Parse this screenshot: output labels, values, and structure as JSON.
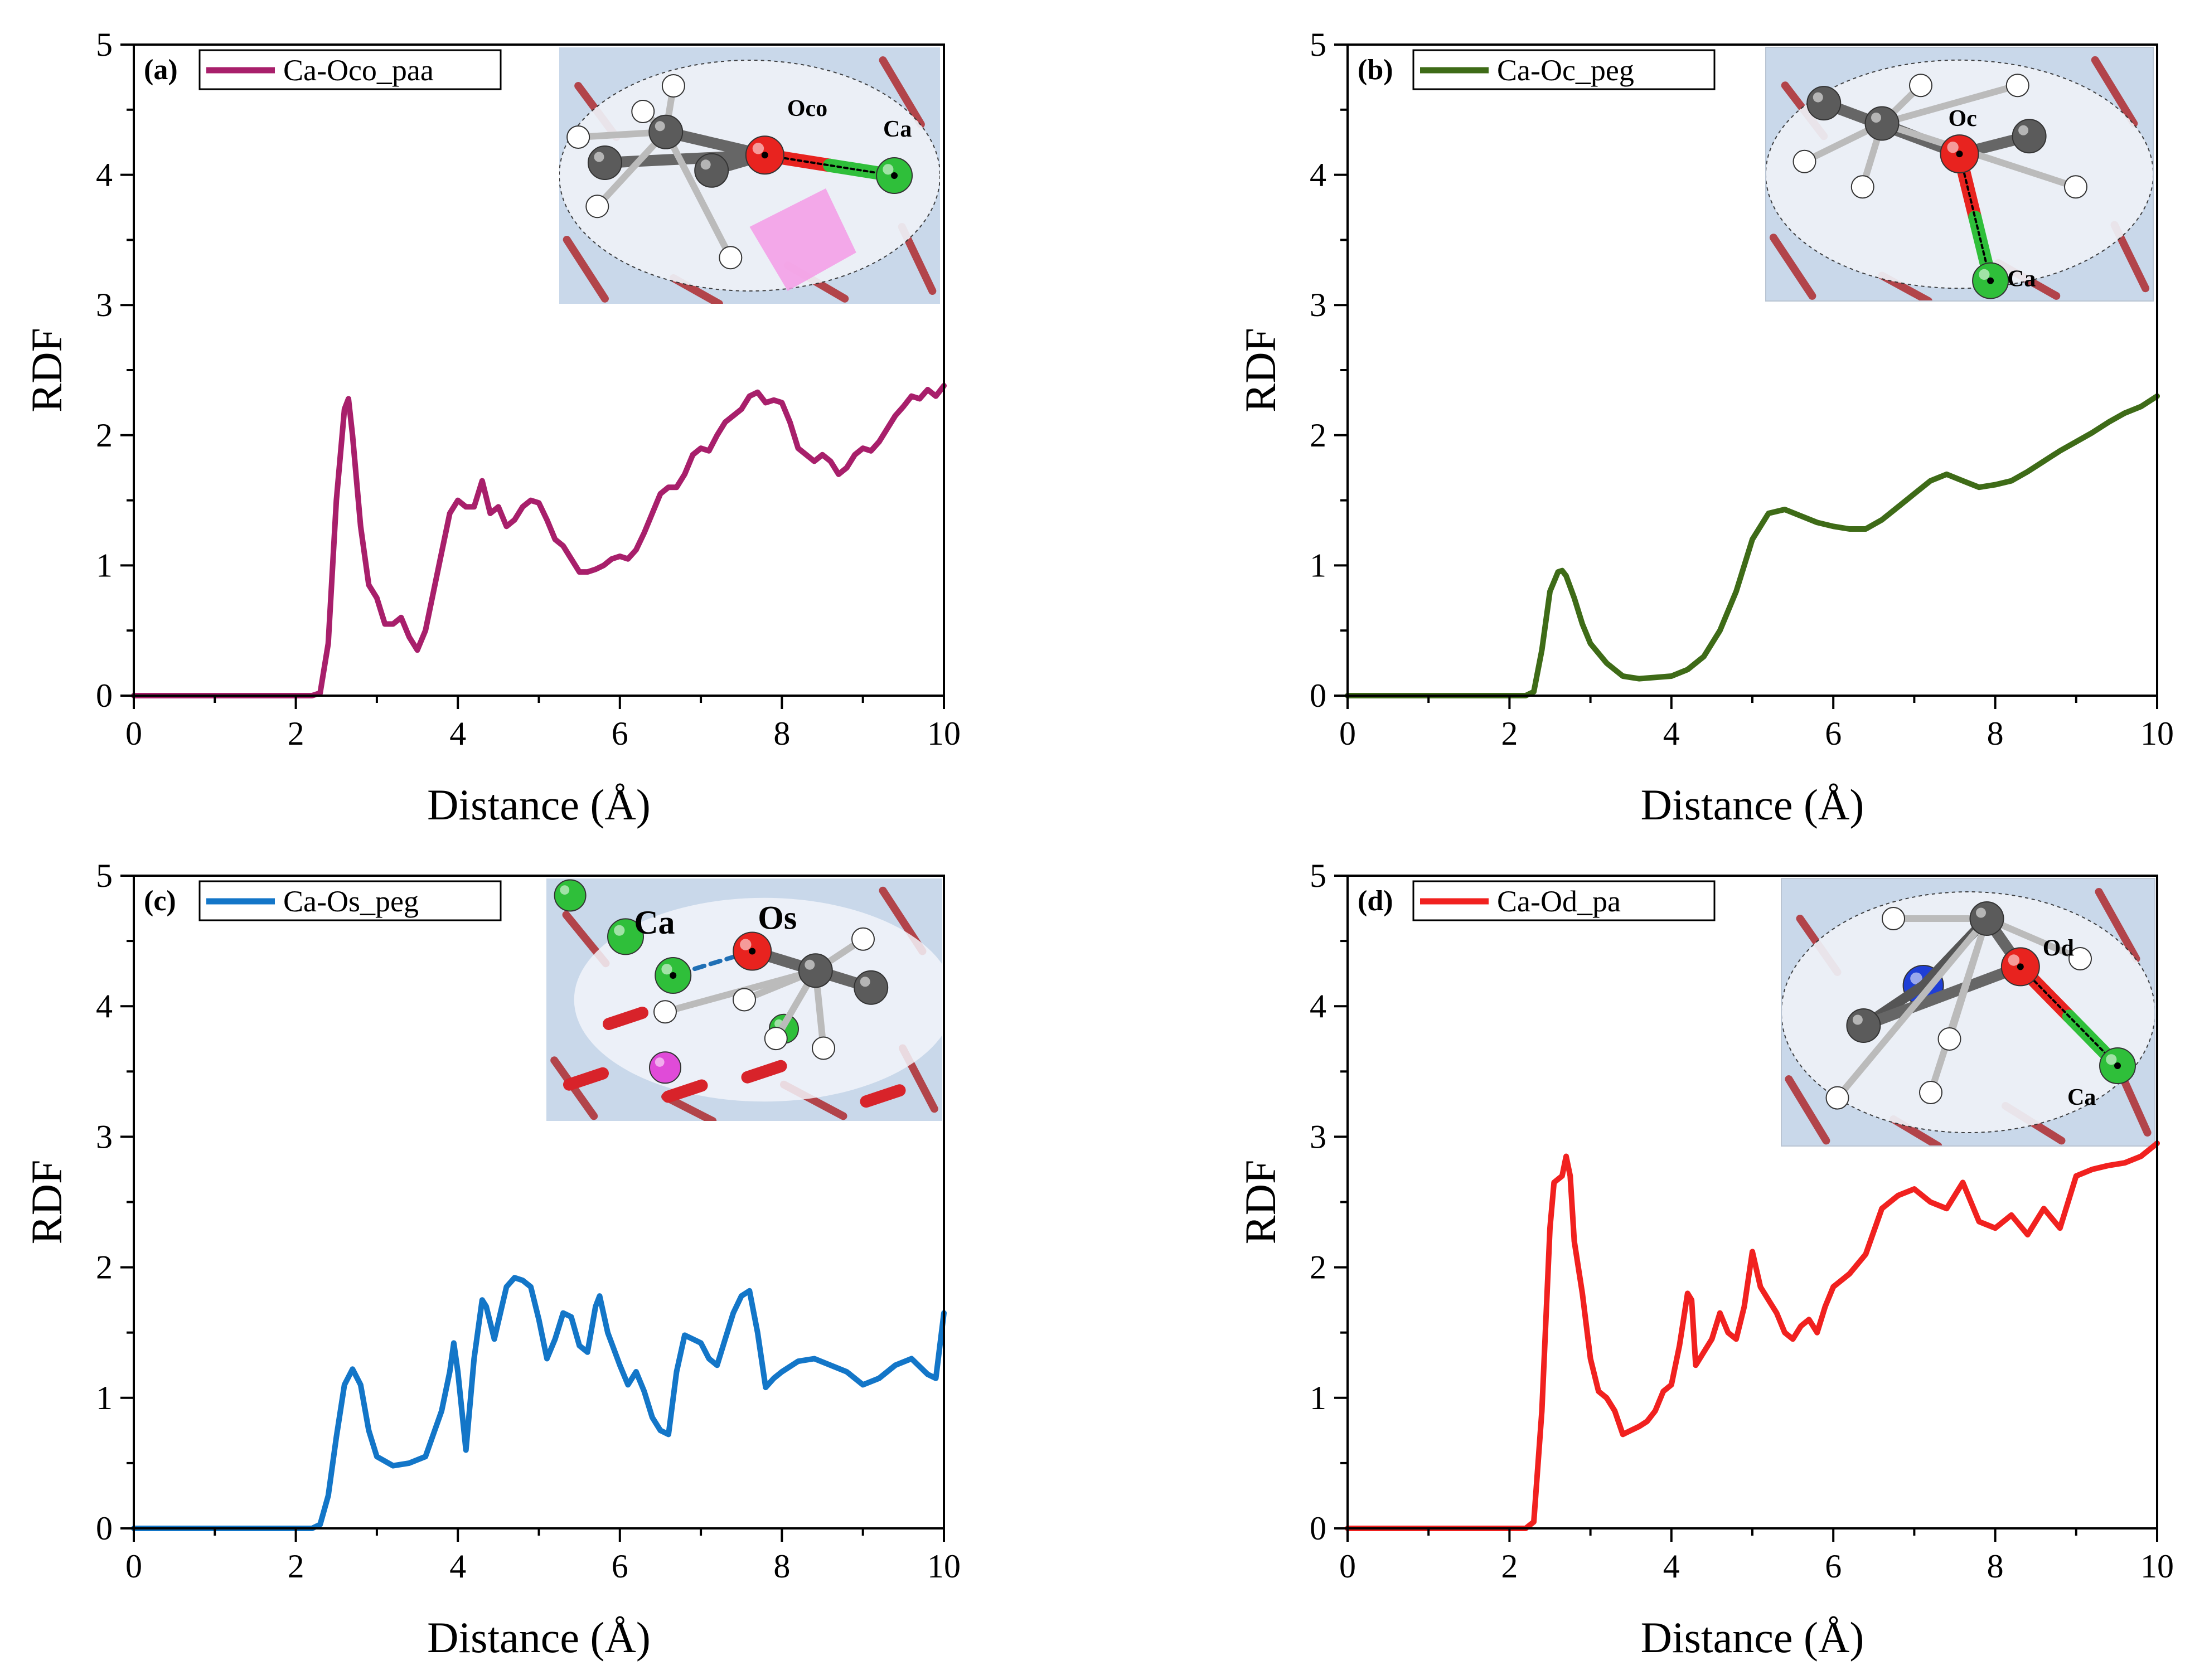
{
  "figure": {
    "description_units": "RDF vs Distance"
  },
  "chart_data": [
    {
      "id": "a",
      "type": "line",
      "panel_label": "(a)",
      "legend": "Ca-Oco_paa",
      "color": "#a81f6b",
      "xlabel": "Distance (Å)",
      "ylabel": "RDF",
      "xlim": [
        0,
        10
      ],
      "ylim": [
        0,
        5
      ],
      "xticks": [
        "0",
        "2",
        "4",
        "6",
        "8",
        "10"
      ],
      "yticks": [
        "0",
        "1",
        "2",
        "3",
        "4",
        "5"
      ],
      "inset_labels": {
        "o": "Oco",
        "ca": "Ca"
      },
      "inset_style": "oval-bond-horizontal",
      "x": [
        0,
        2.2,
        2.3,
        2.4,
        2.5,
        2.6,
        2.65,
        2.7,
        2.8,
        2.9,
        3.0,
        3.1,
        3.2,
        3.3,
        3.4,
        3.5,
        3.6,
        3.7,
        3.8,
        3.9,
        4.0,
        4.1,
        4.2,
        4.3,
        4.4,
        4.5,
        4.6,
        4.7,
        4.8,
        4.9,
        5.0,
        5.1,
        5.2,
        5.3,
        5.4,
        5.5,
        5.6,
        5.7,
        5.8,
        5.9,
        6.0,
        6.1,
        6.2,
        6.3,
        6.4,
        6.5,
        6.6,
        6.7,
        6.8,
        6.9,
        7.0,
        7.1,
        7.2,
        7.3,
        7.4,
        7.5,
        7.6,
        7.7,
        7.8,
        7.9,
        8.0,
        8.1,
        8.2,
        8.3,
        8.4,
        8.5,
        8.6,
        8.7,
        8.8,
        8.9,
        9.0,
        9.1,
        9.2,
        9.3,
        9.4,
        9.5,
        9.6,
        9.7,
        9.8,
        9.9,
        10.0
      ],
      "y": [
        0,
        0,
        0.02,
        0.4,
        1.5,
        2.2,
        2.28,
        2.0,
        1.3,
        0.85,
        0.75,
        0.55,
        0.55,
        0.6,
        0.45,
        0.35,
        0.5,
        0.8,
        1.1,
        1.4,
        1.5,
        1.45,
        1.45,
        1.65,
        1.4,
        1.45,
        1.3,
        1.35,
        1.45,
        1.5,
        1.48,
        1.35,
        1.2,
        1.15,
        1.05,
        0.95,
        0.95,
        0.97,
        1.0,
        1.05,
        1.07,
        1.05,
        1.12,
        1.25,
        1.4,
        1.55,
        1.6,
        1.6,
        1.7,
        1.85,
        1.9,
        1.88,
        2.0,
        2.1,
        2.15,
        2.2,
        2.3,
        2.33,
        2.25,
        2.27,
        2.25,
        2.1,
        1.9,
        1.85,
        1.8,
        1.85,
        1.8,
        1.7,
        1.75,
        1.85,
        1.9,
        1.88,
        1.95,
        2.05,
        2.15,
        2.22,
        2.3,
        2.28,
        2.35,
        2.3,
        2.38
      ]
    },
    {
      "id": "b",
      "type": "line",
      "panel_label": "(b)",
      "legend": "Ca-Oc_peg",
      "color": "#3e6b17",
      "xlabel": "Distance (Å)",
      "ylabel": "RDF",
      "xlim": [
        0,
        10
      ],
      "ylim": [
        0,
        5
      ],
      "xticks": [
        "0",
        "2",
        "4",
        "6",
        "8",
        "10"
      ],
      "yticks": [
        "0",
        "1",
        "2",
        "3",
        "4",
        "5"
      ],
      "inset_labels": {
        "o": "Oc",
        "ca": "Ca"
      },
      "inset_style": "oval-bond-vertical",
      "x": [
        0,
        2.2,
        2.3,
        2.4,
        2.5,
        2.6,
        2.65,
        2.7,
        2.8,
        2.9,
        3.0,
        3.2,
        3.4,
        3.6,
        3.8,
        4.0,
        4.2,
        4.4,
        4.6,
        4.8,
        5.0,
        5.2,
        5.4,
        5.6,
        5.8,
        6.0,
        6.2,
        6.4,
        6.6,
        6.8,
        7.0,
        7.2,
        7.4,
        7.6,
        7.8,
        8.0,
        8.2,
        8.4,
        8.6,
        8.8,
        9.0,
        9.2,
        9.4,
        9.6,
        9.8,
        10.0
      ],
      "y": [
        0,
        0,
        0.03,
        0.35,
        0.8,
        0.95,
        0.96,
        0.92,
        0.75,
        0.55,
        0.4,
        0.25,
        0.15,
        0.13,
        0.14,
        0.15,
        0.2,
        0.3,
        0.5,
        0.8,
        1.2,
        1.4,
        1.43,
        1.38,
        1.33,
        1.3,
        1.28,
        1.28,
        1.35,
        1.45,
        1.55,
        1.65,
        1.7,
        1.65,
        1.6,
        1.62,
        1.65,
        1.72,
        1.8,
        1.88,
        1.95,
        2.02,
        2.1,
        2.17,
        2.22,
        2.3
      ]
    },
    {
      "id": "c",
      "type": "line",
      "panel_label": "(c)",
      "legend": "Ca-Os_peg",
      "color": "#1376c8",
      "xlabel": "Distance (Å)",
      "ylabel": "RDF",
      "xlim": [
        0,
        10
      ],
      "ylim": [
        0,
        5
      ],
      "xticks": [
        "0",
        "2",
        "4",
        "6",
        "8",
        "10"
      ],
      "yticks": [
        "0",
        "1",
        "2",
        "3",
        "4",
        "5"
      ],
      "inset_labels": {
        "o": "Os",
        "ca": "Ca"
      },
      "inset_style": "rect-dashed-bond",
      "x": [
        0,
        2.2,
        2.3,
        2.4,
        2.5,
        2.6,
        2.7,
        2.8,
        2.9,
        3.0,
        3.2,
        3.4,
        3.6,
        3.8,
        3.9,
        3.95,
        4.0,
        4.1,
        4.2,
        4.3,
        4.35,
        4.45,
        4.6,
        4.7,
        4.8,
        4.9,
        5.0,
        5.1,
        5.2,
        5.3,
        5.4,
        5.5,
        5.6,
        5.7,
        5.75,
        5.85,
        6.0,
        6.1,
        6.2,
        6.3,
        6.4,
        6.5,
        6.6,
        6.7,
        6.8,
        6.9,
        7.0,
        7.1,
        7.2,
        7.3,
        7.4,
        7.5,
        7.6,
        7.7,
        7.8,
        7.9,
        8.0,
        8.2,
        8.4,
        8.6,
        8.8,
        9.0,
        9.2,
        9.4,
        9.6,
        9.8,
        9.9,
        10.0
      ],
      "y": [
        0,
        0,
        0.03,
        0.25,
        0.7,
        1.1,
        1.22,
        1.1,
        0.75,
        0.55,
        0.48,
        0.5,
        0.55,
        0.9,
        1.2,
        1.42,
        1.2,
        0.6,
        1.3,
        1.75,
        1.7,
        1.45,
        1.85,
        1.92,
        1.9,
        1.85,
        1.6,
        1.3,
        1.45,
        1.65,
        1.62,
        1.4,
        1.35,
        1.7,
        1.78,
        1.5,
        1.25,
        1.1,
        1.2,
        1.05,
        0.85,
        0.75,
        0.72,
        1.2,
        1.48,
        1.45,
        1.42,
        1.3,
        1.25,
        1.45,
        1.65,
        1.78,
        1.82,
        1.5,
        1.08,
        1.15,
        1.2,
        1.28,
        1.3,
        1.25,
        1.2,
        1.1,
        1.15,
        1.25,
        1.3,
        1.18,
        1.15,
        1.65
      ]
    },
    {
      "id": "d",
      "type": "line",
      "panel_label": "(d)",
      "legend": "Ca-Od_pa",
      "color": "#f1211f",
      "xlabel": "Distance (Å)",
      "ylabel": "RDF",
      "xlim": [
        0,
        10
      ],
      "ylim": [
        0,
        5
      ],
      "xticks": [
        "0",
        "2",
        "4",
        "6",
        "8",
        "10"
      ],
      "yticks": [
        "0",
        "1",
        "2",
        "3",
        "4",
        "5"
      ],
      "inset_labels": {
        "o": "Od",
        "ca": "Ca"
      },
      "inset_style": "oval-bond-diagonal",
      "x": [
        0,
        2.2,
        2.3,
        2.4,
        2.5,
        2.55,
        2.65,
        2.7,
        2.75,
        2.8,
        2.9,
        3.0,
        3.1,
        3.2,
        3.3,
        3.4,
        3.5,
        3.6,
        3.7,
        3.8,
        3.9,
        4.0,
        4.1,
        4.2,
        4.25,
        4.3,
        4.4,
        4.5,
        4.6,
        4.7,
        4.8,
        4.9,
        5.0,
        5.1,
        5.2,
        5.3,
        5.4,
        5.5,
        5.6,
        5.7,
        5.8,
        5.9,
        6.0,
        6.2,
        6.4,
        6.6,
        6.8,
        7.0,
        7.2,
        7.4,
        7.6,
        7.8,
        8.0,
        8.2,
        8.4,
        8.6,
        8.8,
        9.0,
        9.2,
        9.4,
        9.6,
        9.8,
        10.0
      ],
      "y": [
        0,
        0,
        0.05,
        0.9,
        2.3,
        2.65,
        2.7,
        2.85,
        2.7,
        2.2,
        1.8,
        1.3,
        1.05,
        1.0,
        0.9,
        0.72,
        0.75,
        0.78,
        0.82,
        0.9,
        1.05,
        1.1,
        1.4,
        1.8,
        1.75,
        1.25,
        1.35,
        1.45,
        1.65,
        1.5,
        1.45,
        1.7,
        2.12,
        1.85,
        1.75,
        1.65,
        1.5,
        1.45,
        1.55,
        1.6,
        1.5,
        1.7,
        1.85,
        1.95,
        2.1,
        2.45,
        2.55,
        2.6,
        2.5,
        2.45,
        2.65,
        2.35,
        2.3,
        2.4,
        2.25,
        2.45,
        2.3,
        2.7,
        2.75,
        2.78,
        2.8,
        2.85,
        2.95
      ]
    }
  ]
}
